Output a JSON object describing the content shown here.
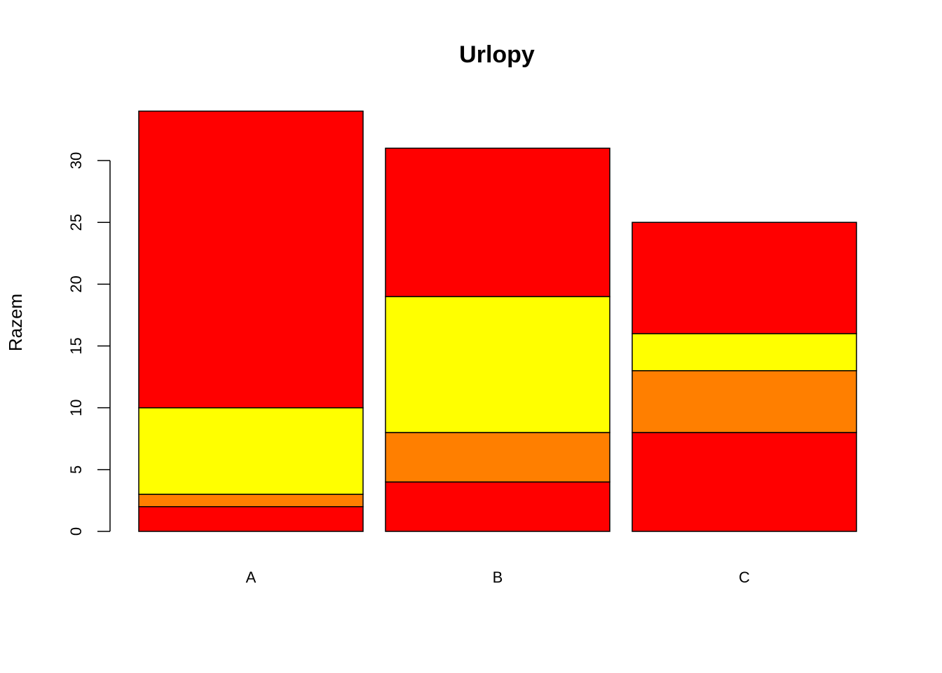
{
  "chart_data": {
    "type": "stacked-bar",
    "title": "Urlopy",
    "y_label": "Razem",
    "categories": [
      "A",
      "B",
      "C"
    ],
    "series": [
      {
        "color": "#ff0000",
        "values": [
          2,
          4,
          8
        ]
      },
      {
        "color": "#ff7f00",
        "values": [
          1,
          4,
          5
        ]
      },
      {
        "color": "#ffff00",
        "values": [
          7,
          11,
          3
        ]
      },
      {
        "color": "#ff0000",
        "values": [
          24,
          12,
          9
        ]
      }
    ],
    "ylim": [
      0,
      34
    ],
    "yticks": [
      0,
      5,
      10,
      15,
      20,
      25,
      30
    ],
    "grid": false
  }
}
